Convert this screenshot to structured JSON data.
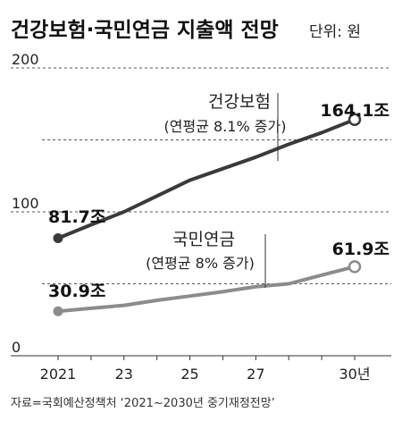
{
  "header": {
    "title": "건강보험·국민연금 지출액 전망",
    "unit": "단위: 원"
  },
  "footer": {
    "source": "자료=국회예산정책처  ‘2021~2030년 중기재정전망’"
  },
  "chart_data": {
    "type": "line",
    "title": "건강보험·국민연금 지출액 전망",
    "unit_note": "단위: 원",
    "xlabel": "",
    "ylabel": "",
    "x": [
      2021,
      2022,
      2023,
      2024,
      2025,
      2026,
      2027,
      2028,
      2029,
      2030
    ],
    "xtick_values": [
      2021,
      2023,
      2025,
      2027,
      2030
    ],
    "xtick_labels": [
      "2021",
      "23",
      "25",
      "27",
      "30년"
    ],
    "yticks": [
      0,
      100,
      200
    ],
    "ytick_labels": [
      "0",
      "100",
      "200"
    ],
    "ylim": [
      0,
      200
    ],
    "grid": true,
    "series": [
      {
        "name": "건강보험",
        "note": "(연평균 8.1% 증가)",
        "color": "#3a3a3a",
        "marker_end_fill": "#ffffff",
        "values": [
          81.7,
          91.0,
          100.0,
          111.0,
          122.0,
          130.0,
          138.0,
          147.0,
          155.0,
          164.1
        ],
        "start_label": "81.7조",
        "end_label": "164.1조"
      },
      {
        "name": "국민연금",
        "note": "(연평균 8% 증가)",
        "color": "#8c8c8c",
        "marker_end_fill": "#ffffff",
        "values": [
          30.9,
          33.0,
          35.0,
          38.5,
          41.5,
          44.5,
          48.0,
          50.0,
          56.0,
          61.9
        ],
        "start_label": "30.9조",
        "end_label": "61.9조"
      }
    ]
  }
}
